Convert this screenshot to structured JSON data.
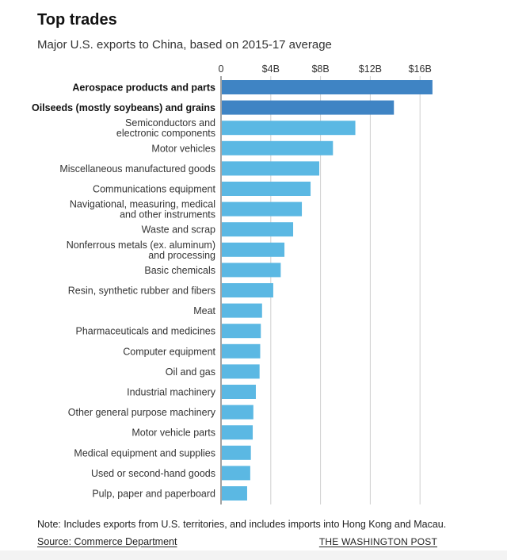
{
  "title": "Top trades",
  "subtitle": "Major U.S. exports to China, based on 2015-17 average",
  "note": "Note: Includes exports from U.S. territories, and includes imports into Hong Kong and Macau.",
  "source": "Source: Commerce Department",
  "credit": "THE WASHINGTON POST",
  "colors": {
    "highlight": "#3f84c4",
    "normal": "#5bb8e3",
    "grid": "#cfcfcf",
    "axis": "#444444"
  },
  "chart_data": {
    "type": "bar",
    "orientation": "horizontal",
    "xlim": [
      0,
      17
    ],
    "ticks": [
      {
        "value": 0,
        "label": "0"
      },
      {
        "value": 4,
        "label": "$4B"
      },
      {
        "value": 8,
        "label": "$8B"
      },
      {
        "value": 12,
        "label": "$12B"
      },
      {
        "value": 16,
        "label": "$16B"
      }
    ],
    "grid": true,
    "bars": [
      {
        "label": [
          "Aerospace products and parts"
        ],
        "value": 17.0,
        "highlight": true
      },
      {
        "label": [
          "Oilseeds (mostly soybeans) and grains"
        ],
        "value": 13.9,
        "highlight": true
      },
      {
        "label": [
          "Semiconductors and",
          "electronic components"
        ],
        "value": 10.8,
        "highlight": false
      },
      {
        "label": [
          "Motor vehicles"
        ],
        "value": 9.0,
        "highlight": false
      },
      {
        "label": [
          "Miscellaneous manufactured goods"
        ],
        "value": 7.9,
        "highlight": false
      },
      {
        "label": [
          "Communications equipment"
        ],
        "value": 7.2,
        "highlight": false
      },
      {
        "label": [
          "Navigational, measuring, medical",
          "and other instruments"
        ],
        "value": 6.5,
        "highlight": false
      },
      {
        "label": [
          "Waste and scrap"
        ],
        "value": 5.8,
        "highlight": false
      },
      {
        "label": [
          "Nonferrous metals (ex. aluminum)",
          "and processing"
        ],
        "value": 5.1,
        "highlight": false
      },
      {
        "label": [
          "Basic chemicals"
        ],
        "value": 4.8,
        "highlight": false
      },
      {
        "label": [
          "Resin, synthetic rubber and fibers"
        ],
        "value": 4.2,
        "highlight": false
      },
      {
        "label": [
          "Meat"
        ],
        "value": 3.3,
        "highlight": false
      },
      {
        "label": [
          "Pharmaceuticals and medicines"
        ],
        "value": 3.2,
        "highlight": false
      },
      {
        "label": [
          "Computer equipment"
        ],
        "value": 3.15,
        "highlight": false
      },
      {
        "label": [
          "Oil and gas"
        ],
        "value": 3.1,
        "highlight": false
      },
      {
        "label": [
          "Industrial machinery"
        ],
        "value": 2.8,
        "highlight": false
      },
      {
        "label": [
          "Other general purpose machinery"
        ],
        "value": 2.6,
        "highlight": false
      },
      {
        "label": [
          "Motor vehicle parts"
        ],
        "value": 2.55,
        "highlight": false
      },
      {
        "label": [
          "Medical equipment and supplies"
        ],
        "value": 2.4,
        "highlight": false
      },
      {
        "label": [
          "Used or second-hand goods"
        ],
        "value": 2.35,
        "highlight": false
      },
      {
        "label": [
          "Pulp, paper and paperboard"
        ],
        "value": 2.1,
        "highlight": false
      }
    ]
  }
}
